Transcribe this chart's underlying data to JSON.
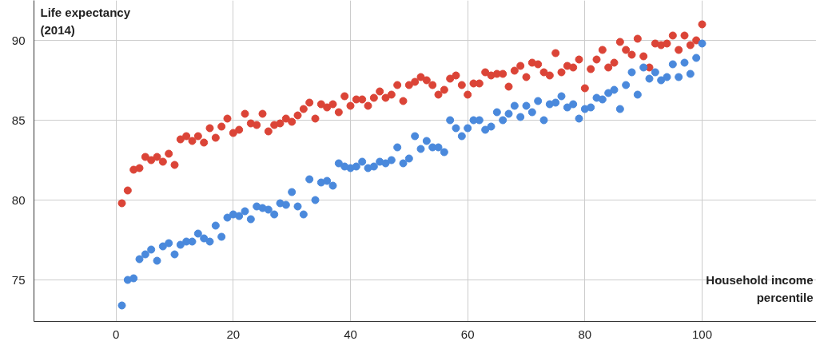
{
  "chart_data": {
    "type": "scatter",
    "ylabel": "Life expectancy\n(2014)",
    "xlabel": "Household income\npercentile",
    "x": [
      1,
      2,
      3,
      4,
      5,
      6,
      7,
      8,
      9,
      10,
      11,
      12,
      13,
      14,
      15,
      16,
      17,
      18,
      19,
      20,
      21,
      22,
      23,
      24,
      25,
      26,
      27,
      28,
      29,
      30,
      31,
      32,
      33,
      34,
      35,
      36,
      37,
      38,
      39,
      40,
      41,
      42,
      43,
      44,
      45,
      46,
      47,
      48,
      49,
      50,
      51,
      52,
      53,
      54,
      55,
      56,
      57,
      58,
      59,
      60,
      61,
      62,
      63,
      64,
      65,
      66,
      67,
      68,
      69,
      70,
      71,
      72,
      73,
      74,
      75,
      76,
      77,
      78,
      79,
      80,
      81,
      82,
      83,
      84,
      85,
      86,
      87,
      88,
      89,
      90,
      91,
      92,
      93,
      94,
      95,
      96,
      97,
      98,
      99,
      100
    ],
    "series": [
      {
        "color": "#db4437",
        "values": [
          79.8,
          80.6,
          81.9,
          82.0,
          82.7,
          82.5,
          82.7,
          82.4,
          82.9,
          82.2,
          83.8,
          84.0,
          83.7,
          84.0,
          83.6,
          84.5,
          83.9,
          84.6,
          85.1,
          84.2,
          84.4,
          85.4,
          84.8,
          84.7,
          85.4,
          84.3,
          84.7,
          84.8,
          85.1,
          84.9,
          85.3,
          85.7,
          86.1,
          85.1,
          86.0,
          85.8,
          86.0,
          85.5,
          86.5,
          85.9,
          86.3,
          86.3,
          85.9,
          86.4,
          86.8,
          86.4,
          86.6,
          87.2,
          86.2,
          87.2,
          87.4,
          87.7,
          87.5,
          87.2,
          86.6,
          86.9,
          87.6,
          87.8,
          87.2,
          86.6,
          87.3,
          87.3,
          88.0,
          87.8,
          87.9,
          87.9,
          87.1,
          88.1,
          88.4,
          87.7,
          88.6,
          88.5,
          88.0,
          87.8,
          89.2,
          88.0,
          88.4,
          88.3,
          88.8,
          87.0,
          88.2,
          88.8,
          89.4,
          88.3,
          88.6,
          89.9,
          89.4,
          89.1,
          90.1,
          89.0,
          88.3,
          89.8,
          89.7,
          89.8,
          90.3,
          89.4,
          90.3,
          89.7,
          90.0,
          91.0
        ]
      },
      {
        "color": "#4a89dc",
        "values": [
          73.4,
          75.0,
          75.1,
          76.3,
          76.6,
          76.9,
          76.2,
          77.1,
          77.3,
          76.6,
          77.2,
          77.4,
          77.4,
          77.9,
          77.6,
          77.4,
          78.4,
          77.7,
          78.9,
          79.1,
          79.0,
          79.3,
          78.8,
          79.6,
          79.5,
          79.4,
          79.1,
          79.8,
          79.7,
          80.5,
          79.6,
          79.1,
          81.3,
          80.0,
          81.1,
          81.2,
          80.9,
          82.3,
          82.1,
          82.0,
          82.1,
          82.4,
          82.0,
          82.1,
          82.4,
          82.3,
          82.5,
          83.3,
          82.3,
          82.6,
          84.0,
          83.2,
          83.7,
          83.3,
          83.3,
          83.0,
          85.0,
          84.5,
          84.0,
          84.5,
          85.0,
          85.0,
          84.4,
          84.6,
          85.5,
          85.0,
          85.4,
          85.9,
          85.2,
          85.9,
          85.5,
          86.2,
          85.0,
          86.0,
          86.1,
          86.5,
          85.8,
          86.0,
          85.1,
          85.7,
          85.8,
          86.4,
          86.3,
          86.7,
          86.9,
          85.7,
          87.2,
          88.0,
          86.6,
          88.3,
          87.6,
          88.0,
          87.5,
          87.7,
          88.5,
          87.7,
          88.6,
          87.9,
          88.9,
          89.8
        ]
      }
    ],
    "xlim": [
      -14,
      119.5
    ],
    "ylim": [
      72.4,
      92.5
    ],
    "xticks": [
      0,
      20,
      40,
      60,
      80,
      100
    ],
    "yticks": [
      75,
      80,
      85,
      90
    ],
    "grid": true,
    "marker": "circle"
  }
}
